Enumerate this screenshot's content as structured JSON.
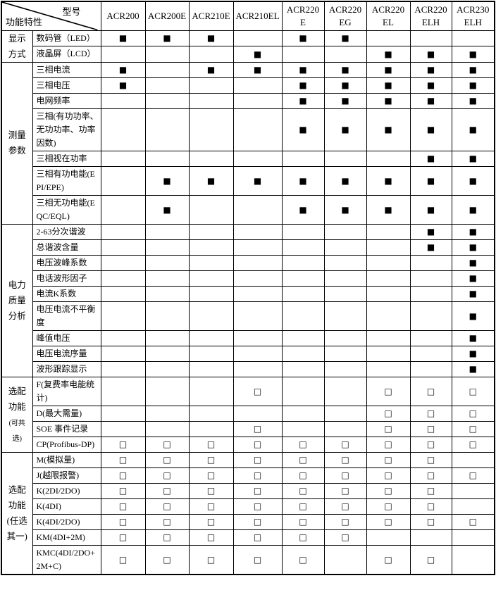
{
  "table": {
    "corner": {
      "top_label": "型号",
      "bottom_label": "功能特性"
    },
    "models": [
      "ACR200",
      "ACR200E",
      "ACR210E",
      "ACR210EL",
      "ACR220\nE",
      "ACR220\nEG",
      "ACR220\nEL",
      "ACR220\nELH",
      "ACR230\nELH"
    ],
    "symbols": {
      "filled": "■",
      "optional": "□"
    },
    "groups": [
      {
        "label": "显示方式",
        "rows": [
          {
            "feature": "数码管（LED）",
            "cells": [
              "f",
              "f",
              "f",
              "",
              "f",
              "f",
              "",
              "",
              ""
            ]
          },
          {
            "feature": "液晶屏（LCD）",
            "cells": [
              "",
              "",
              "",
              "f",
              "",
              "",
              "f",
              "f",
              "f"
            ]
          }
        ]
      },
      {
        "label": "测量参数",
        "rows": [
          {
            "feature": "三相电流",
            "cells": [
              "f",
              "",
              "f",
              "f",
              "f",
              "f",
              "f",
              "f",
              "f"
            ]
          },
          {
            "feature": "三相电压",
            "cells": [
              "f",
              "",
              "",
              "",
              "f",
              "f",
              "f",
              "f",
              "f"
            ]
          },
          {
            "feature": "电网频率",
            "cells": [
              "",
              "",
              "",
              "",
              "f",
              "f",
              "f",
              "f",
              "f"
            ]
          },
          {
            "feature": "三相(有功功率、无功功率、功率因数)",
            "cells": [
              "",
              "",
              "",
              "",
              "f",
              "f",
              "f",
              "f",
              "f"
            ]
          },
          {
            "feature": "三相视在功率",
            "cells": [
              "",
              "",
              "",
              "",
              "",
              "",
              "",
              "f",
              "f"
            ]
          },
          {
            "feature": "三相有功电能(EPI/EPE)",
            "cells": [
              "",
              "f",
              "f",
              "f",
              "f",
              "f",
              "f",
              "f",
              "f"
            ]
          },
          {
            "feature": "三相无功电能(EQC/EQL)",
            "cells": [
              "",
              "f",
              "",
              "",
              "f",
              "f",
              "f",
              "f",
              "f"
            ]
          }
        ]
      },
      {
        "label": "电力质量分析",
        "rows": [
          {
            "feature": "2-63分次谐波",
            "cells": [
              "",
              "",
              "",
              "",
              "",
              "",
              "",
              "f",
              "f"
            ]
          },
          {
            "feature": "总谐波含量",
            "cells": [
              "",
              "",
              "",
              "",
              "",
              "",
              "",
              "f",
              "f"
            ]
          },
          {
            "feature": "电压波峰系数",
            "cells": [
              "",
              "",
              "",
              "",
              "",
              "",
              "",
              "",
              "f"
            ]
          },
          {
            "feature": "电话波形因子",
            "cells": [
              "",
              "",
              "",
              "",
              "",
              "",
              "",
              "",
              "f"
            ]
          },
          {
            "feature": "电流K系数",
            "cells": [
              "",
              "",
              "",
              "",
              "",
              "",
              "",
              "",
              "f"
            ]
          },
          {
            "feature": "电压电流不平衡度",
            "cells": [
              "",
              "",
              "",
              "",
              "",
              "",
              "",
              "",
              "f"
            ]
          },
          {
            "feature": "峰值电压",
            "cells": [
              "",
              "",
              "",
              "",
              "",
              "",
              "",
              "",
              "f"
            ]
          },
          {
            "feature": "电压电流序量",
            "cells": [
              "",
              "",
              "",
              "",
              "",
              "",
              "",
              "",
              "f"
            ]
          },
          {
            "feature": "波形跟踪显示",
            "cells": [
              "",
              "",
              "",
              "",
              "",
              "",
              "",
              "",
              "f"
            ]
          }
        ]
      },
      {
        "label": "选配功能",
        "sublabel": "(可共选)",
        "sublabel_small": true,
        "rows": [
          {
            "feature": "F(复费率电能统计)",
            "cells": [
              "",
              "",
              "",
              "o",
              "",
              "",
              "o",
              "o",
              "o"
            ]
          },
          {
            "feature": "D(最大需量)",
            "cells": [
              "",
              "",
              "",
              "",
              "",
              "",
              "o",
              "o",
              "o"
            ]
          },
          {
            "feature": "SOE 事件记录",
            "cells": [
              "",
              "",
              "",
              "o",
              "",
              "",
              "o",
              "o",
              "o"
            ]
          },
          {
            "feature": "CP(Profibus-DP)",
            "cells": [
              "o",
              "o",
              "o",
              "o",
              "o",
              "o",
              "o",
              "o",
              "o"
            ]
          }
        ]
      },
      {
        "label": "选配功能",
        "sublabel": "(任选其一)",
        "sublabel_small": false,
        "rows": [
          {
            "feature": "M(模拟量)",
            "cells": [
              "o",
              "o",
              "o",
              "o",
              "o",
              "o",
              "o",
              "o",
              ""
            ]
          },
          {
            "feature": "J(越限报警)",
            "cells": [
              "o",
              "o",
              "o",
              "o",
              "o",
              "o",
              "o",
              "o",
              "o"
            ]
          },
          {
            "feature": "K(2DI/2DO)",
            "cells": [
              "o",
              "o",
              "o",
              "o",
              "o",
              "o",
              "o",
              "o",
              ""
            ]
          },
          {
            "feature": "K(4DI)",
            "cells": [
              "o",
              "o",
              "o",
              "o",
              "o",
              "o",
              "o",
              "o",
              ""
            ]
          },
          {
            "feature": "K(4DI/2DO)",
            "cells": [
              "o",
              "o",
              "o",
              "o",
              "o",
              "o",
              "o",
              "o",
              "o"
            ]
          },
          {
            "feature": "KM(4DI+2M)",
            "cells": [
              "o",
              "o",
              "o",
              "o",
              "o",
              "o",
              "",
              "",
              ""
            ]
          },
          {
            "feature": "KMC(4DI/2DO+2M+C)",
            "cells": [
              "o",
              "o",
              "o",
              "o",
              "o",
              "",
              "o",
              "o",
              ""
            ]
          }
        ]
      }
    ]
  }
}
